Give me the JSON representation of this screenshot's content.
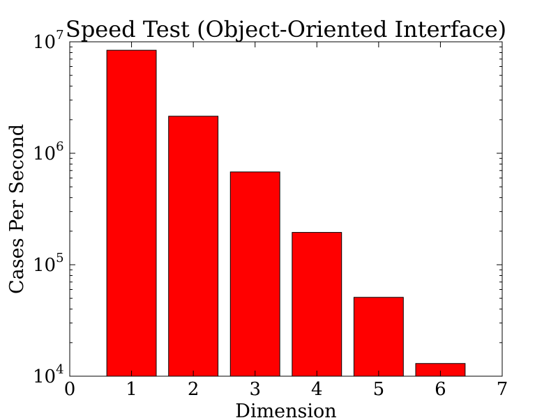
{
  "chart_data": {
    "type": "bar",
    "title": "Speed Test (Object-Oriented Interface)",
    "xlabel": "Dimension",
    "ylabel": "Cases Per Second",
    "yscale": "log",
    "x": [
      1,
      2,
      3,
      4,
      5,
      6
    ],
    "values": [
      8400000,
      2150000,
      680000,
      195000,
      51000,
      13000
    ],
    "xlim": [
      0,
      7
    ],
    "ylim": [
      10000,
      10000000
    ],
    "xticks": [
      "0",
      "1",
      "2",
      "3",
      "4",
      "5",
      "6",
      "7"
    ],
    "yticks": [
      {
        "value": 10000,
        "base": "10",
        "exponent": "4"
      },
      {
        "value": 100000,
        "base": "10",
        "exponent": "5"
      },
      {
        "value": 1000000,
        "base": "10",
        "exponent": "6"
      },
      {
        "value": 10000000,
        "base": "10",
        "exponent": "7"
      }
    ],
    "bar_color": "#ff0000",
    "edge_color": "#000000",
    "grid": false
  }
}
